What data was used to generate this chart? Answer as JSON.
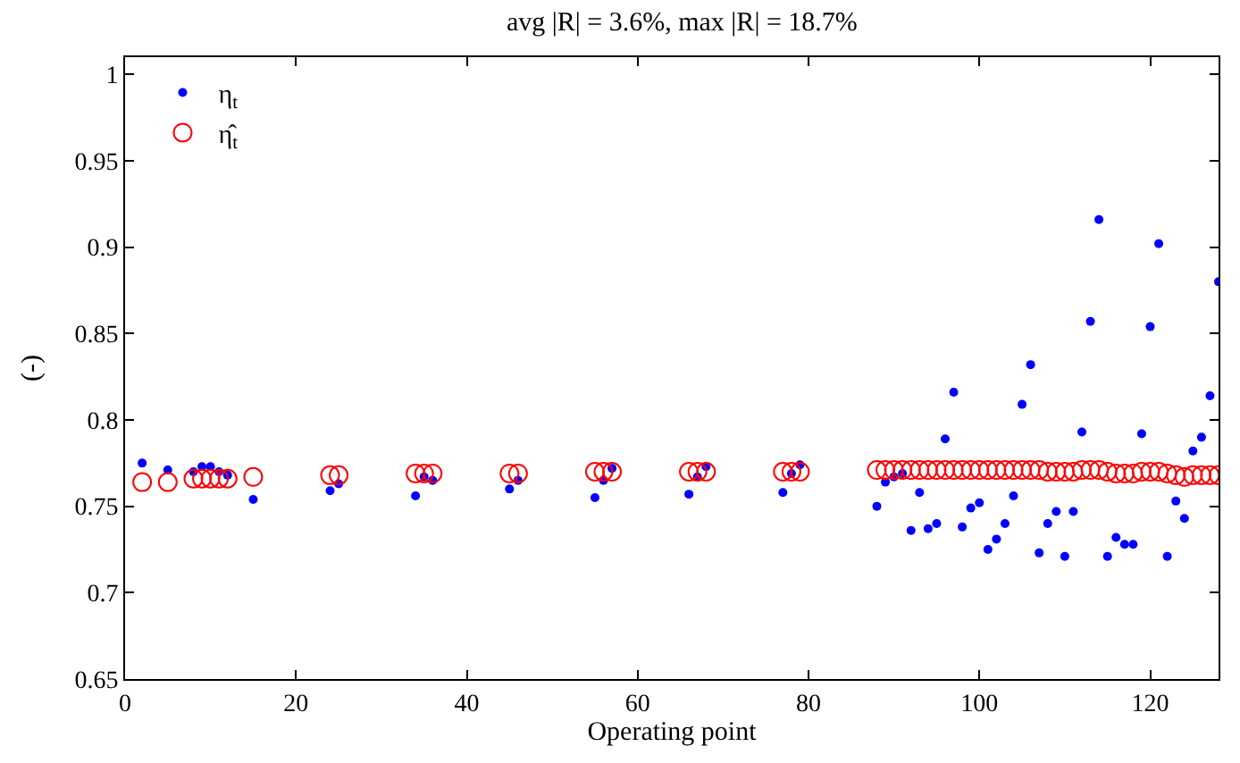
{
  "chart_data": {
    "type": "scatter",
    "title": "avg |R| = 3.6%, max |R| = 18.7%",
    "xlabel": "Operating point",
    "ylabel": "(-)",
    "xlim": [
      0,
      128
    ],
    "xticks": [
      0,
      20,
      40,
      60,
      80,
      100,
      120
    ],
    "ylim": [
      0.65,
      1.01
    ],
    "yticks": [
      0.65,
      {
        "value": 0.7,
        "label": "0.7"
      },
      0.75,
      {
        "value": 0.8,
        "label": "0.8"
      },
      0.85,
      {
        "value": 0.9,
        "label": "0.9"
      },
      0.95,
      {
        "value": 1.0,
        "label": "1"
      }
    ],
    "legend": "top left",
    "marker": "circle",
    "series": [
      {
        "name": "η$_{t}$",
        "color": "#0000ff",
        "x": [
          2,
          5,
          8,
          9,
          10,
          11,
          12,
          15,
          24,
          25,
          34,
          35,
          36,
          45,
          46,
          55,
          56,
          57,
          66,
          67,
          68,
          77,
          78,
          79,
          88,
          89,
          90,
          91,
          92,
          93,
          94,
          95,
          96,
          97,
          98,
          99,
          100,
          101,
          102,
          103,
          104,
          105,
          106,
          107,
          108,
          109,
          110,
          111,
          112,
          113,
          114,
          115,
          116,
          117,
          118,
          119,
          120,
          121,
          122,
          123,
          124,
          125,
          126,
          127,
          128
        ],
        "values": [
          0.775,
          0.771,
          0.77,
          0.773,
          0.773,
          0.77,
          0.768,
          0.754,
          0.759,
          0.763,
          0.756,
          0.767,
          0.765,
          0.76,
          0.765,
          0.755,
          0.765,
          0.772,
          0.757,
          0.767,
          0.773,
          0.758,
          0.769,
          0.774,
          0.75,
          0.764,
          0.767,
          0.769,
          0.736,
          0.758,
          0.737,
          0.74,
          0.789,
          0.816,
          0.738,
          0.749,
          0.752,
          0.725,
          0.731,
          0.74,
          0.756,
          0.809,
          0.832,
          0.723,
          0.74,
          0.747,
          0.721,
          0.747,
          0.793,
          0.857,
          0.916,
          0.721,
          0.732,
          0.728,
          0.728,
          0.792,
          0.854,
          0.902,
          0.721,
          0.753,
          0.743,
          0.782,
          0.79,
          0.814,
          0.88
        ]
      },
      {
        "name": "η̂$_{t}$",
        "color": "#ff0000",
        "x": [
          2,
          5,
          8,
          9,
          10,
          11,
          12,
          15,
          24,
          25,
          34,
          35,
          36,
          45,
          46,
          55,
          56,
          57,
          66,
          67,
          68,
          77,
          78,
          79,
          88,
          89,
          90,
          91,
          92,
          93,
          94,
          95,
          96,
          97,
          98,
          99,
          100,
          101,
          102,
          103,
          104,
          105,
          106,
          107,
          108,
          109,
          110,
          111,
          112,
          113,
          114,
          115,
          116,
          117,
          118,
          119,
          120,
          121,
          122,
          123,
          124,
          125,
          126,
          127,
          128
        ],
        "values": [
          0.764,
          0.764,
          0.766,
          0.766,
          0.766,
          0.766,
          0.766,
          0.767,
          0.768,
          0.768,
          0.769,
          0.769,
          0.769,
          0.769,
          0.769,
          0.77,
          0.77,
          0.77,
          0.77,
          0.77,
          0.77,
          0.77,
          0.77,
          0.77,
          0.771,
          0.771,
          0.771,
          0.771,
          0.771,
          0.771,
          0.771,
          0.771,
          0.771,
          0.771,
          0.771,
          0.771,
          0.771,
          0.771,
          0.771,
          0.771,
          0.771,
          0.771,
          0.771,
          0.771,
          0.77,
          0.77,
          0.77,
          0.77,
          0.771,
          0.771,
          0.771,
          0.77,
          0.769,
          0.769,
          0.769,
          0.77,
          0.77,
          0.77,
          0.769,
          0.768,
          0.767,
          0.768,
          0.768,
          0.768,
          0.768
        ]
      }
    ]
  }
}
